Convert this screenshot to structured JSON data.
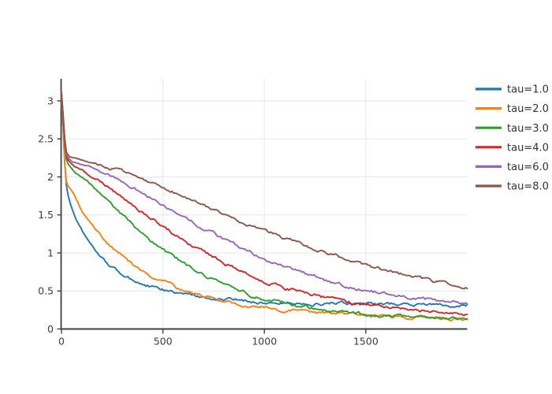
{
  "figure": {
    "title": "",
    "background_color": "#ffffff",
    "axis_line_color": "#3f3f3f",
    "grid_color": "#e7e7e7",
    "tick_label_color": "#3d3d3d",
    "legend_label_color": "#333333",
    "legend_position": "outside-right-top"
  },
  "chart_data": {
    "type": "line",
    "title": "",
    "xlabel": "",
    "ylabel": "",
    "xlim": [
      0,
      2000
    ],
    "ylim": [
      0,
      3.29
    ],
    "x_ticks": [
      "0",
      "500",
      "1000",
      "1500"
    ],
    "x_tick_values": [
      0,
      500,
      1000,
      1500
    ],
    "y_ticks": [
      "0",
      "0.5",
      "1",
      "1.5",
      "2",
      "2.5",
      "3"
    ],
    "y_tick_values": [
      0,
      0.5,
      1,
      1.5,
      2,
      2.5,
      3
    ],
    "grid": true,
    "noise_amplitude": 0.013,
    "x": [
      0,
      25,
      50,
      100,
      150,
      200,
      300,
      400,
      500,
      600,
      700,
      800,
      900,
      1000,
      1100,
      1200,
      1300,
      1400,
      1500,
      1600,
      1700,
      1800,
      1900,
      2000
    ],
    "series": [
      {
        "name": "tau=1.0",
        "color": "#1f77b4",
        "values": [
          3.05,
          1.87,
          1.6,
          1.3,
          1.09,
          0.93,
          0.72,
          0.59,
          0.51,
          0.46,
          0.42,
          0.39,
          0.37,
          0.351,
          0.342,
          0.336,
          0.332,
          0.328,
          0.326,
          0.324,
          0.322,
          0.319,
          0.316,
          0.313
        ]
      },
      {
        "name": "tau=2.0",
        "color": "#ff7f0e",
        "values": [
          3.06,
          1.92,
          1.82,
          1.56,
          1.36,
          1.2,
          0.95,
          0.76,
          0.63,
          0.5,
          0.42,
          0.37,
          0.32,
          0.284,
          0.252,
          0.227,
          0.207,
          0.191,
          0.178,
          0.167,
          0.159,
          0.152,
          0.145,
          0.138
        ]
      },
      {
        "name": "tau=3.0",
        "color": "#2ca02c",
        "values": [
          3.08,
          2.22,
          2.11,
          2.0,
          1.88,
          1.75,
          1.5,
          1.26,
          1.05,
          0.87,
          0.71,
          0.59,
          0.48,
          0.4,
          0.335,
          0.284,
          0.245,
          0.215,
          0.193,
          0.176,
          0.165,
          0.158,
          0.152,
          0.148
        ]
      },
      {
        "name": "tau=4.0",
        "color": "#d62728",
        "values": [
          3.09,
          2.26,
          2.17,
          2.09,
          2.01,
          1.93,
          1.73,
          1.54,
          1.35,
          1.17,
          1.01,
          0.87,
          0.74,
          0.63,
          0.54,
          0.47,
          0.41,
          0.355,
          0.314,
          0.281,
          0.255,
          0.235,
          0.219,
          0.207
        ]
      },
      {
        "name": "tau=6.0",
        "color": "#9467bd",
        "values": [
          3.1,
          2.29,
          2.21,
          2.17,
          2.12,
          2.07,
          1.94,
          1.79,
          1.64,
          1.48,
          1.33,
          1.18,
          1.04,
          0.92,
          0.81,
          0.72,
          0.64,
          0.57,
          0.51,
          0.46,
          0.42,
          0.39,
          0.363,
          0.343
        ]
      },
      {
        "name": "tau=8.0",
        "color": "#8c564b",
        "values": [
          3.12,
          2.32,
          2.25,
          2.22,
          2.19,
          2.15,
          2.07,
          1.97,
          1.86,
          1.75,
          1.63,
          1.52,
          1.4,
          1.29,
          1.19,
          1.09,
          1.0,
          0.92,
          0.84,
          0.77,
          0.7,
          0.65,
          0.6,
          0.55
        ]
      }
    ]
  }
}
